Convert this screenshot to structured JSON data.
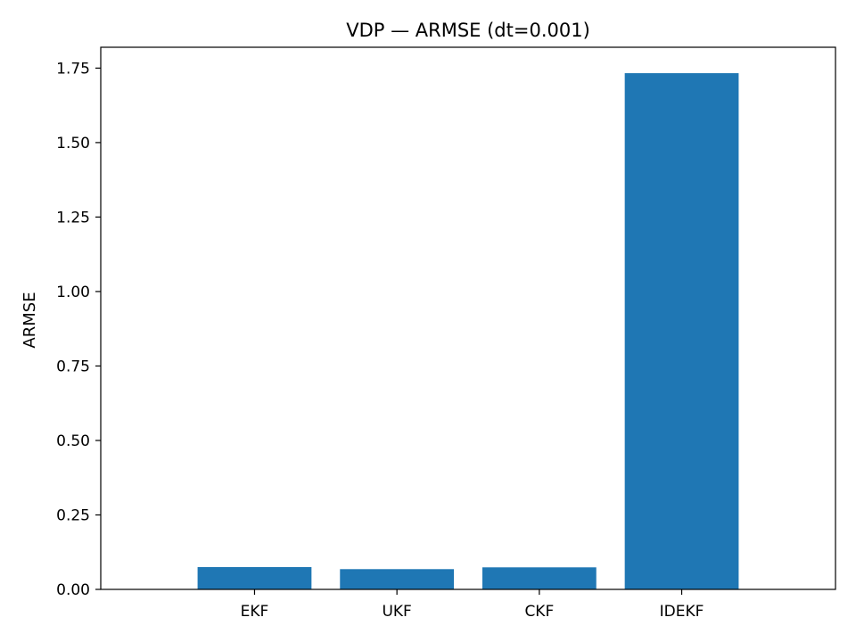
{
  "chart_data": {
    "type": "bar",
    "title": "VDP — ARMSE (dt=0.001)",
    "xlabel": "",
    "ylabel": "ARMSE",
    "categories": [
      "EKF",
      "UKF",
      "CKF",
      "IDEKF"
    ],
    "values": [
      0.075,
      0.068,
      0.074,
      1.733
    ],
    "ylim": [
      0,
      1.82
    ],
    "yticks": [
      0.0,
      0.25,
      0.5,
      0.75,
      1.0,
      1.25,
      1.5,
      1.75
    ],
    "ytick_labels": [
      "0.00",
      "0.25",
      "0.50",
      "0.75",
      "1.00",
      "1.25",
      "1.50",
      "1.75"
    ],
    "grid": false,
    "colors": {
      "bar": "#1f77b4",
      "axis": "#000000"
    }
  }
}
